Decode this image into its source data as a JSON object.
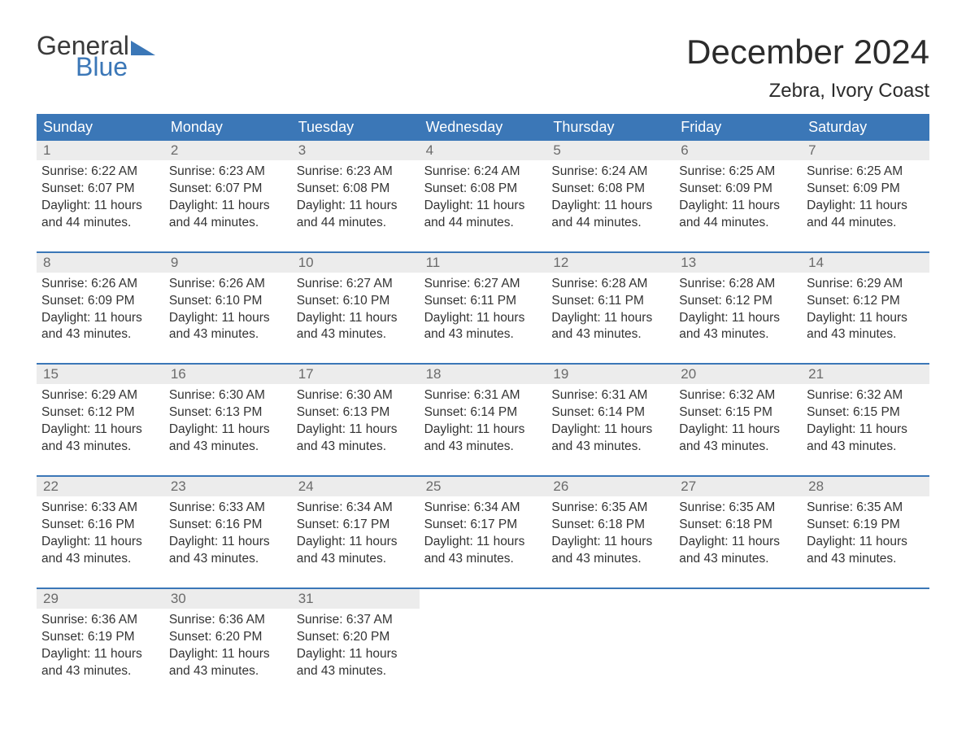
{
  "logo": {
    "word1": "General",
    "word2": "Blue",
    "color1": "#3a3a3a",
    "color2": "#3b77b7"
  },
  "header": {
    "title": "December 2024",
    "location": "Zebra, Ivory Coast"
  },
  "styling": {
    "header_bg": "#3b77b7",
    "header_text": "#ffffff",
    "daynum_bg": "#ececec",
    "daynum_color": "#6b6b6b",
    "body_text": "#333333",
    "title_fontsize": 42,
    "location_fontsize": 24,
    "weekday_fontsize": 18,
    "body_fontsize": 15.5
  },
  "weekdays": [
    "Sunday",
    "Monday",
    "Tuesday",
    "Wednesday",
    "Thursday",
    "Friday",
    "Saturday"
  ],
  "weeks": [
    [
      {
        "n": "1",
        "sr": "6:22 AM",
        "ss": "6:07 PM",
        "dl": "11 hours",
        "dm": "and 44 minutes."
      },
      {
        "n": "2",
        "sr": "6:23 AM",
        "ss": "6:07 PM",
        "dl": "11 hours",
        "dm": "and 44 minutes."
      },
      {
        "n": "3",
        "sr": "6:23 AM",
        "ss": "6:08 PM",
        "dl": "11 hours",
        "dm": "and 44 minutes."
      },
      {
        "n": "4",
        "sr": "6:24 AM",
        "ss": "6:08 PM",
        "dl": "11 hours",
        "dm": "and 44 minutes."
      },
      {
        "n": "5",
        "sr": "6:24 AM",
        "ss": "6:08 PM",
        "dl": "11 hours",
        "dm": "and 44 minutes."
      },
      {
        "n": "6",
        "sr": "6:25 AM",
        "ss": "6:09 PM",
        "dl": "11 hours",
        "dm": "and 44 minutes."
      },
      {
        "n": "7",
        "sr": "6:25 AM",
        "ss": "6:09 PM",
        "dl": "11 hours",
        "dm": "and 44 minutes."
      }
    ],
    [
      {
        "n": "8",
        "sr": "6:26 AM",
        "ss": "6:09 PM",
        "dl": "11 hours",
        "dm": "and 43 minutes."
      },
      {
        "n": "9",
        "sr": "6:26 AM",
        "ss": "6:10 PM",
        "dl": "11 hours",
        "dm": "and 43 minutes."
      },
      {
        "n": "10",
        "sr": "6:27 AM",
        "ss": "6:10 PM",
        "dl": "11 hours",
        "dm": "and 43 minutes."
      },
      {
        "n": "11",
        "sr": "6:27 AM",
        "ss": "6:11 PM",
        "dl": "11 hours",
        "dm": "and 43 minutes."
      },
      {
        "n": "12",
        "sr": "6:28 AM",
        "ss": "6:11 PM",
        "dl": "11 hours",
        "dm": "and 43 minutes."
      },
      {
        "n": "13",
        "sr": "6:28 AM",
        "ss": "6:12 PM",
        "dl": "11 hours",
        "dm": "and 43 minutes."
      },
      {
        "n": "14",
        "sr": "6:29 AM",
        "ss": "6:12 PM",
        "dl": "11 hours",
        "dm": "and 43 minutes."
      }
    ],
    [
      {
        "n": "15",
        "sr": "6:29 AM",
        "ss": "6:12 PM",
        "dl": "11 hours",
        "dm": "and 43 minutes."
      },
      {
        "n": "16",
        "sr": "6:30 AM",
        "ss": "6:13 PM",
        "dl": "11 hours",
        "dm": "and 43 minutes."
      },
      {
        "n": "17",
        "sr": "6:30 AM",
        "ss": "6:13 PM",
        "dl": "11 hours",
        "dm": "and 43 minutes."
      },
      {
        "n": "18",
        "sr": "6:31 AM",
        "ss": "6:14 PM",
        "dl": "11 hours",
        "dm": "and 43 minutes."
      },
      {
        "n": "19",
        "sr": "6:31 AM",
        "ss": "6:14 PM",
        "dl": "11 hours",
        "dm": "and 43 minutes."
      },
      {
        "n": "20",
        "sr": "6:32 AM",
        "ss": "6:15 PM",
        "dl": "11 hours",
        "dm": "and 43 minutes."
      },
      {
        "n": "21",
        "sr": "6:32 AM",
        "ss": "6:15 PM",
        "dl": "11 hours",
        "dm": "and 43 minutes."
      }
    ],
    [
      {
        "n": "22",
        "sr": "6:33 AM",
        "ss": "6:16 PM",
        "dl": "11 hours",
        "dm": "and 43 minutes."
      },
      {
        "n": "23",
        "sr": "6:33 AM",
        "ss": "6:16 PM",
        "dl": "11 hours",
        "dm": "and 43 minutes."
      },
      {
        "n": "24",
        "sr": "6:34 AM",
        "ss": "6:17 PM",
        "dl": "11 hours",
        "dm": "and 43 minutes."
      },
      {
        "n": "25",
        "sr": "6:34 AM",
        "ss": "6:17 PM",
        "dl": "11 hours",
        "dm": "and 43 minutes."
      },
      {
        "n": "26",
        "sr": "6:35 AM",
        "ss": "6:18 PM",
        "dl": "11 hours",
        "dm": "and 43 minutes."
      },
      {
        "n": "27",
        "sr": "6:35 AM",
        "ss": "6:18 PM",
        "dl": "11 hours",
        "dm": "and 43 minutes."
      },
      {
        "n": "28",
        "sr": "6:35 AM",
        "ss": "6:19 PM",
        "dl": "11 hours",
        "dm": "and 43 minutes."
      }
    ],
    [
      {
        "n": "29",
        "sr": "6:36 AM",
        "ss": "6:19 PM",
        "dl": "11 hours",
        "dm": "and 43 minutes."
      },
      {
        "n": "30",
        "sr": "6:36 AM",
        "ss": "6:20 PM",
        "dl": "11 hours",
        "dm": "and 43 minutes."
      },
      {
        "n": "31",
        "sr": "6:37 AM",
        "ss": "6:20 PM",
        "dl": "11 hours",
        "dm": "and 43 minutes."
      },
      null,
      null,
      null,
      null
    ]
  ],
  "labels": {
    "sunrise": "Sunrise:",
    "sunset": "Sunset:",
    "daylight": "Daylight:"
  }
}
